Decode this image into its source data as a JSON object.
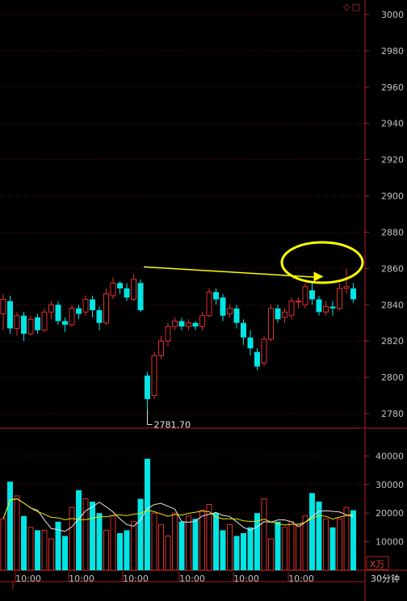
{
  "chart": {
    "timeframe_label": "30分钟",
    "volume_unit_label": "X万",
    "low_annotation": "2781.70",
    "corner_icons": [
      "diamond-icon",
      "square-icon"
    ],
    "colors": {
      "up": "#e03030",
      "down": "#00e4e4",
      "grid": "#7a1010",
      "axis": "#b02020",
      "ma_white": "#e8e8e8",
      "ma_yellow": "#e8e800",
      "highlight": "#ffff00",
      "tick_text": "#c0c0c0"
    }
  },
  "chart_data": [
    {
      "type": "candlestick",
      "y_ticks": [
        2780,
        2800,
        2820,
        2840,
        2860,
        2880,
        2900,
        2920,
        2940,
        2960,
        2980,
        3000
      ],
      "ylim": [
        2772,
        3008
      ],
      "x_tick_labels": [
        "10:00",
        "10:00",
        "10:00",
        "10:00",
        "10:00",
        "10:00"
      ],
      "candles": [
        [
          2835,
          2843,
          2826,
          2846
        ],
        [
          2842,
          2827,
          2824,
          2845
        ],
        [
          2827,
          2834,
          2823,
          2836
        ],
        [
          2834,
          2824,
          2820,
          2836
        ],
        [
          2824,
          2832,
          2823,
          2834
        ],
        [
          2833,
          2826,
          2824,
          2835
        ],
        [
          2826,
          2836,
          2825,
          2838
        ],
        [
          2836,
          2840,
          2832,
          2842
        ],
        [
          2840,
          2831,
          2829,
          2842
        ],
        [
          2831,
          2829,
          2825,
          2833
        ],
        [
          2829,
          2838,
          2828,
          2840
        ],
        [
          2838,
          2835,
          2832,
          2840
        ],
        [
          2836,
          2843,
          2834,
          2845
        ],
        [
          2843,
          2837,
          2833,
          2845
        ],
        [
          2837,
          2830,
          2826,
          2839
        ],
        [
          2830,
          2846,
          2829,
          2849
        ],
        [
          2845,
          2852,
          2843,
          2855
        ],
        [
          2852,
          2849,
          2846,
          2853
        ],
        [
          2849,
          2844,
          2842,
          2852
        ],
        [
          2843,
          2854,
          2842,
          2857
        ],
        [
          2852,
          2837,
          2836,
          2854
        ],
        [
          2801,
          2788,
          2782,
          2803
        ],
        [
          2790,
          2812,
          2788,
          2814
        ],
        [
          2812,
          2820,
          2810,
          2823
        ],
        [
          2820,
          2828,
          2817,
          2830
        ],
        [
          2828,
          2831,
          2826,
          2833
        ],
        [
          2831,
          2828,
          2826,
          2833
        ],
        [
          2828,
          2830,
          2826,
          2832
        ],
        [
          2830,
          2828,
          2826,
          2831
        ],
        [
          2828,
          2834,
          2826,
          2836
        ],
        [
          2834,
          2847,
          2833,
          2849
        ],
        [
          2847,
          2843,
          2840,
          2849
        ],
        [
          2844,
          2834,
          2831,
          2846
        ],
        [
          2835,
          2838,
          2833,
          2840
        ],
        [
          2838,
          2830,
          2827,
          2840
        ],
        [
          2830,
          2822,
          2818,
          2832
        ],
        [
          2822,
          2816,
          2812,
          2826
        ],
        [
          2814,
          2806,
          2804,
          2816
        ],
        [
          2808,
          2821,
          2806,
          2823
        ],
        [
          2821,
          2838,
          2820,
          2840
        ],
        [
          2838,
          2832,
          2830,
          2840
        ],
        [
          2833,
          2836,
          2830,
          2838
        ],
        [
          2834,
          2842,
          2832,
          2844
        ],
        [
          2842,
          2842,
          2838,
          2844
        ],
        [
          2840,
          2850,
          2838,
          2852
        ],
        [
          2848,
          2843,
          2840,
          2852
        ],
        [
          2843,
          2836,
          2834,
          2845
        ],
        [
          2836,
          2839,
          2834,
          2842
        ],
        [
          2839,
          2838,
          2834,
          2842
        ],
        [
          2838,
          2849,
          2837,
          2852
        ],
        [
          2849,
          2850,
          2846,
          2860
        ],
        [
          2849,
          2843,
          2841,
          2852
        ]
      ],
      "horizontal_line_level": 2856
    },
    {
      "type": "bar",
      "y_ticks": [
        10000,
        20000,
        30000,
        40000
      ],
      "ylim": [
        0,
        48000
      ],
      "volumes": [
        18000,
        31000,
        26000,
        19000,
        15000,
        14000,
        14000,
        11000,
        17000,
        12000,
        22000,
        28000,
        25000,
        24000,
        20000,
        14000,
        19000,
        13000,
        14000,
        17000,
        25000,
        39000,
        20000,
        16000,
        12000,
        20000,
        17000,
        19000,
        18000,
        21000,
        23000,
        20000,
        14000,
        16000,
        12000,
        13000,
        15000,
        20000,
        25000,
        11000,
        17000,
        15000,
        17000,
        16000,
        19000,
        27000,
        24000,
        18000,
        15000,
        18000,
        22000,
        21000
      ]
    }
  ]
}
